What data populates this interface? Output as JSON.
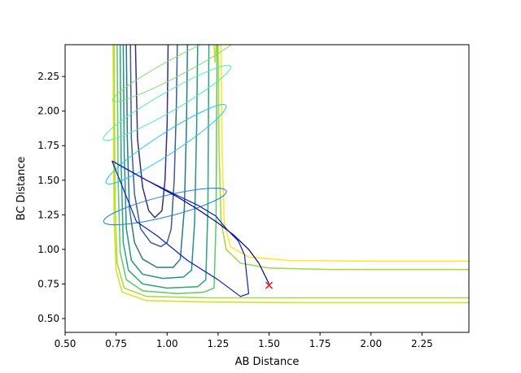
{
  "chart_data": {
    "type": "line",
    "title": "",
    "xlabel": "AB Distance",
    "ylabel": "BC Distance",
    "xlim": [
      0.5,
      2.48
    ],
    "ylim": [
      0.4,
      2.48
    ],
    "grid": false,
    "xticks": [
      {
        "value": 0.5,
        "label": "0.50"
      },
      {
        "value": 0.75,
        "label": "0.75"
      },
      {
        "value": 1.0,
        "label": "1.00"
      },
      {
        "value": 1.25,
        "label": "1.25"
      },
      {
        "value": 1.5,
        "label": "1.50"
      },
      {
        "value": 1.75,
        "label": "1.75"
      },
      {
        "value": 2.0,
        "label": "2.00"
      },
      {
        "value": 2.25,
        "label": "2.25"
      }
    ],
    "yticks": [
      {
        "value": 0.5,
        "label": "0.50"
      },
      {
        "value": 0.75,
        "label": "0.75"
      },
      {
        "value": 1.0,
        "label": "1.00"
      },
      {
        "value": 1.25,
        "label": "1.25"
      },
      {
        "value": 1.5,
        "label": "1.50"
      },
      {
        "value": 1.75,
        "label": "1.75"
      },
      {
        "value": 2.0,
        "label": "2.00"
      },
      {
        "value": 2.25,
        "label": "2.25"
      }
    ],
    "contours": [
      {
        "color": "#3b2f7a",
        "width": 1.5,
        "points": [
          [
            0.845,
            2.48
          ],
          [
            0.855,
            1.8
          ],
          [
            0.88,
            1.45
          ],
          [
            0.91,
            1.28
          ],
          [
            0.94,
            1.23
          ],
          [
            0.975,
            1.28
          ],
          [
            0.99,
            1.5
          ],
          [
            1.0,
            1.9
          ],
          [
            1.005,
            2.48
          ]
        ]
      },
      {
        "color": "#3b5f8f",
        "width": 1.5,
        "points": [
          [
            0.82,
            2.48
          ],
          [
            0.825,
            1.8
          ],
          [
            0.84,
            1.4
          ],
          [
            0.87,
            1.15
          ],
          [
            0.92,
            1.05
          ],
          [
            0.97,
            1.02
          ],
          [
            1.0,
            1.05
          ],
          [
            1.02,
            1.15
          ],
          [
            1.035,
            1.5
          ],
          [
            1.045,
            2.0
          ],
          [
            1.05,
            2.48
          ]
        ]
      },
      {
        "color": "#2c768e",
        "width": 1.5,
        "points": [
          [
            0.8,
            2.48
          ],
          [
            0.805,
            1.8
          ],
          [
            0.815,
            1.3
          ],
          [
            0.84,
            1.05
          ],
          [
            0.88,
            0.93
          ],
          [
            0.95,
            0.87
          ],
          [
            1.03,
            0.87
          ],
          [
            1.065,
            0.93
          ],
          [
            1.085,
            1.3
          ],
          [
            1.095,
            1.9
          ],
          [
            1.1,
            2.48
          ]
        ]
      },
      {
        "color": "#23948a",
        "width": 1.5,
        "points": [
          [
            0.785,
            2.48
          ],
          [
            0.79,
            1.7
          ],
          [
            0.8,
            1.15
          ],
          [
            0.825,
            0.92
          ],
          [
            0.88,
            0.82
          ],
          [
            0.98,
            0.79
          ],
          [
            1.08,
            0.8
          ],
          [
            1.12,
            0.85
          ],
          [
            1.135,
            1.2
          ],
          [
            1.145,
            1.9
          ],
          [
            1.15,
            2.48
          ]
        ]
      },
      {
        "color": "#2aa57e",
        "width": 1.5,
        "points": [
          [
            0.77,
            2.48
          ],
          [
            0.775,
            1.6
          ],
          [
            0.785,
            1.05
          ],
          [
            0.81,
            0.85
          ],
          [
            0.88,
            0.75
          ],
          [
            1.0,
            0.72
          ],
          [
            1.15,
            0.73
          ],
          [
            1.19,
            0.78
          ],
          [
            1.2,
            1.3
          ],
          [
            1.205,
            2.48
          ]
        ]
      },
      {
        "color": "#5ec962",
        "width": 1.5,
        "points": [
          [
            0.755,
            2.48
          ],
          [
            0.76,
            1.5
          ],
          [
            0.77,
            0.98
          ],
          [
            0.8,
            0.78
          ],
          [
            0.88,
            0.7
          ],
          [
            1.05,
            0.68
          ],
          [
            1.18,
            0.69
          ],
          [
            1.23,
            0.72
          ],
          [
            1.24,
            1.2
          ],
          [
            1.245,
            2.48
          ]
        ]
      },
      {
        "color": "#a6d93a",
        "width": 1.5,
        "points": [
          [
            0.74,
            2.48
          ],
          [
            0.745,
            1.3
          ],
          [
            0.755,
            0.9
          ],
          [
            0.79,
            0.72
          ],
          [
            0.9,
            0.66
          ],
          [
            1.2,
            0.65
          ],
          [
            1.6,
            0.65
          ],
          [
            2.48,
            0.65
          ]
        ]
      },
      {
        "color": "#d4e21a",
        "width": 1.5,
        "points": [
          [
            0.735,
            2.48
          ],
          [
            0.74,
            1.2
          ],
          [
            0.75,
            0.85
          ],
          [
            0.78,
            0.69
          ],
          [
            0.9,
            0.63
          ],
          [
            1.2,
            0.62
          ],
          [
            1.6,
            0.615
          ],
          [
            2.48,
            0.615
          ]
        ]
      },
      {
        "color": "#a0da39",
        "width": 1.5,
        "points": [
          [
            1.25,
            2.48
          ],
          [
            1.255,
            1.7
          ],
          [
            1.265,
            1.2
          ],
          [
            1.29,
            1.0
          ],
          [
            1.36,
            0.9
          ],
          [
            1.5,
            0.865
          ],
          [
            1.8,
            0.855
          ],
          [
            2.48,
            0.855
          ]
        ]
      },
      {
        "color": "#fde725",
        "width": 1.5,
        "points": [
          [
            1.265,
            2.48
          ],
          [
            1.27,
            1.7
          ],
          [
            1.28,
            1.2
          ],
          [
            1.31,
            1.02
          ],
          [
            1.4,
            0.945
          ],
          [
            1.6,
            0.92
          ],
          [
            2.0,
            0.915
          ],
          [
            2.48,
            0.915
          ]
        ]
      },
      {
        "color": "#c0dd35",
        "width": 1.5,
        "points": [
          [
            1.23,
            2.48
          ],
          [
            1.235,
            2.35
          ],
          [
            1.24,
            2.48
          ]
        ]
      }
    ],
    "ellipses": [
      {
        "color": "#7fe06a",
        "width": 1.0,
        "cx": 1.06,
        "cy": 2.33,
        "rx": 0.37,
        "ry": 0.065,
        "angle": -28
      },
      {
        "color": "#4cf0b0",
        "width": 1.0,
        "cx": 1.0,
        "cy": 2.06,
        "rx": 0.36,
        "ry": 0.07,
        "angle": -30
      },
      {
        "color": "#1fc8e8",
        "width": 1.0,
        "cx": 0.995,
        "cy": 1.76,
        "rx": 0.35,
        "ry": 0.075,
        "angle": -33
      },
      {
        "color": "#1e7be0",
        "width": 1.0,
        "cx": 0.99,
        "cy": 1.31,
        "rx": 0.31,
        "ry": 0.075,
        "angle": -14
      }
    ],
    "trajectories": [
      {
        "color": "#000080",
        "width": 1.2,
        "points": [
          [
            0.73,
            1.64
          ],
          [
            0.85,
            1.54
          ],
          [
            0.95,
            1.46
          ],
          [
            1.05,
            1.38
          ],
          [
            1.15,
            1.29
          ],
          [
            1.25,
            1.19
          ],
          [
            1.33,
            1.1
          ],
          [
            1.4,
            1.0
          ],
          [
            1.45,
            0.9
          ],
          [
            1.5,
            0.75
          ]
        ]
      },
      {
        "color": "#0a1ec8",
        "width": 1.2,
        "points": [
          [
            0.73,
            1.64
          ],
          [
            0.9,
            1.5
          ],
          [
            1.05,
            1.39
          ],
          [
            1.15,
            1.32
          ],
          [
            1.24,
            1.24
          ],
          [
            1.29,
            1.15
          ],
          [
            1.35,
            1.06
          ],
          [
            1.38,
            0.96
          ],
          [
            1.39,
            0.82
          ],
          [
            1.4,
            0.68
          ],
          [
            1.36,
            0.66
          ],
          [
            1.25,
            0.78
          ],
          [
            1.1,
            0.92
          ],
          [
            0.95,
            1.1
          ],
          [
            0.85,
            1.2
          ],
          [
            0.73,
            1.64
          ]
        ]
      }
    ],
    "marker": {
      "x": 1.5,
      "y": 0.74,
      "symbol": "x",
      "color": "#ff0000"
    }
  }
}
